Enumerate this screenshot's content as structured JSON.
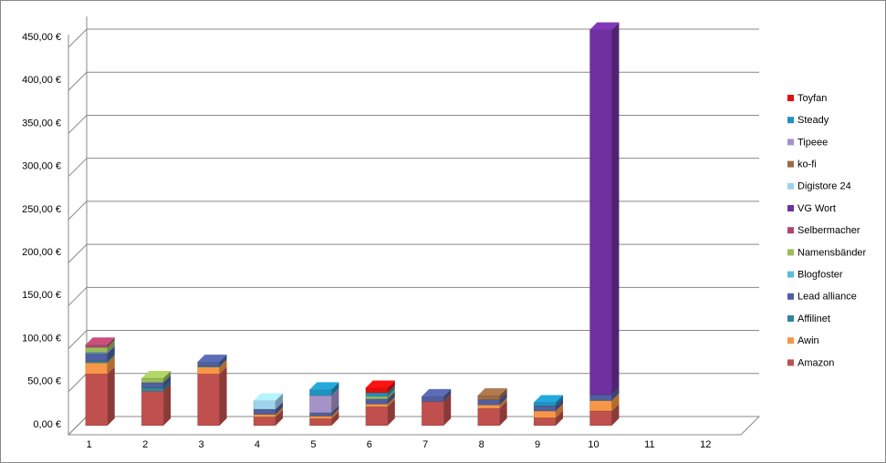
{
  "chart_data": {
    "type": "bar3d_stacked",
    "categories": [
      "1",
      "2",
      "3",
      "4",
      "5",
      "6",
      "7",
      "8",
      "9",
      "10",
      "11",
      "12"
    ],
    "series": [
      {
        "name": "Amazon",
        "color": "#c0504d",
        "values": [
          60,
          40,
          60,
          10,
          8,
          22,
          28,
          20,
          9,
          17,
          null,
          null
        ]
      },
      {
        "name": "Awin",
        "color": "#f79646",
        "values": [
          13,
          null,
          8,
          3,
          3,
          3,
          null,
          4,
          8,
          12,
          null,
          null
        ]
      },
      {
        "name": "Affilinet",
        "color": "#31869b",
        "values": [
          2,
          4,
          1,
          null,
          null,
          null,
          null,
          null,
          null,
          null,
          null,
          null
        ]
      },
      {
        "name": "Lead alliance",
        "color": "#4f5f9f",
        "values": [
          9,
          6,
          5,
          6,
          4,
          6,
          6,
          6,
          6,
          7,
          null,
          null
        ]
      },
      {
        "name": "Blogfoster",
        "color": "#5bbbe0",
        "values": [
          1,
          null,
          null,
          null,
          null,
          null,
          null,
          null,
          null,
          null,
          null,
          null
        ]
      },
      {
        "name": "Namensbänder",
        "color": "#9bbb59",
        "values": [
          6,
          5,
          null,
          null,
          null,
          3,
          null,
          null,
          null,
          null,
          null,
          null
        ]
      },
      {
        "name": "Selbermacher",
        "color": "#b0456e",
        "values": [
          3,
          null,
          null,
          null,
          null,
          null,
          null,
          null,
          null,
          null,
          null,
          null
        ]
      },
      {
        "name": "VG Wort",
        "color": "#7030a0",
        "values": [
          null,
          null,
          null,
          null,
          null,
          null,
          null,
          null,
          null,
          424,
          null,
          null
        ]
      },
      {
        "name": "Digistore 24",
        "color": "#9dd3ec",
        "values": [
          null,
          null,
          null,
          10,
          null,
          null,
          null,
          null,
          null,
          null,
          null,
          null
        ]
      },
      {
        "name": "ko-fi",
        "color": "#9c6a45",
        "values": [
          null,
          null,
          null,
          null,
          null,
          null,
          null,
          5,
          null,
          null,
          null,
          null
        ]
      },
      {
        "name": "Tipeee",
        "color": "#a593c8",
        "values": [
          null,
          null,
          null,
          null,
          20,
          null,
          null,
          null,
          null,
          null,
          null,
          null
        ]
      },
      {
        "name": "Steady",
        "color": "#1f93c0",
        "values": [
          null,
          null,
          null,
          null,
          7,
          4,
          null,
          null,
          4,
          null,
          null,
          null
        ]
      },
      {
        "name": "Toyfan",
        "color": "#e01010",
        "values": [
          null,
          null,
          null,
          null,
          null,
          6,
          null,
          null,
          null,
          null,
          null,
          null
        ]
      }
    ],
    "ylim": [
      0,
      450
    ],
    "yticks": [
      {
        "value": 0,
        "label": "0,00 €"
      },
      {
        "value": 50,
        "label": "50,00 €"
      },
      {
        "value": 100,
        "label": "100,00 €"
      },
      {
        "value": 150,
        "label": "150,00 €"
      },
      {
        "value": 200,
        "label": "200,00 €"
      },
      {
        "value": 250,
        "label": "250,00 €"
      },
      {
        "value": 300,
        "label": "300,00 €"
      },
      {
        "value": 350,
        "label": "350,00 €"
      },
      {
        "value": 400,
        "label": "400,00 €"
      },
      {
        "value": 450,
        "label": "450,00 €"
      }
    ],
    "grid": true,
    "legend": "right"
  }
}
